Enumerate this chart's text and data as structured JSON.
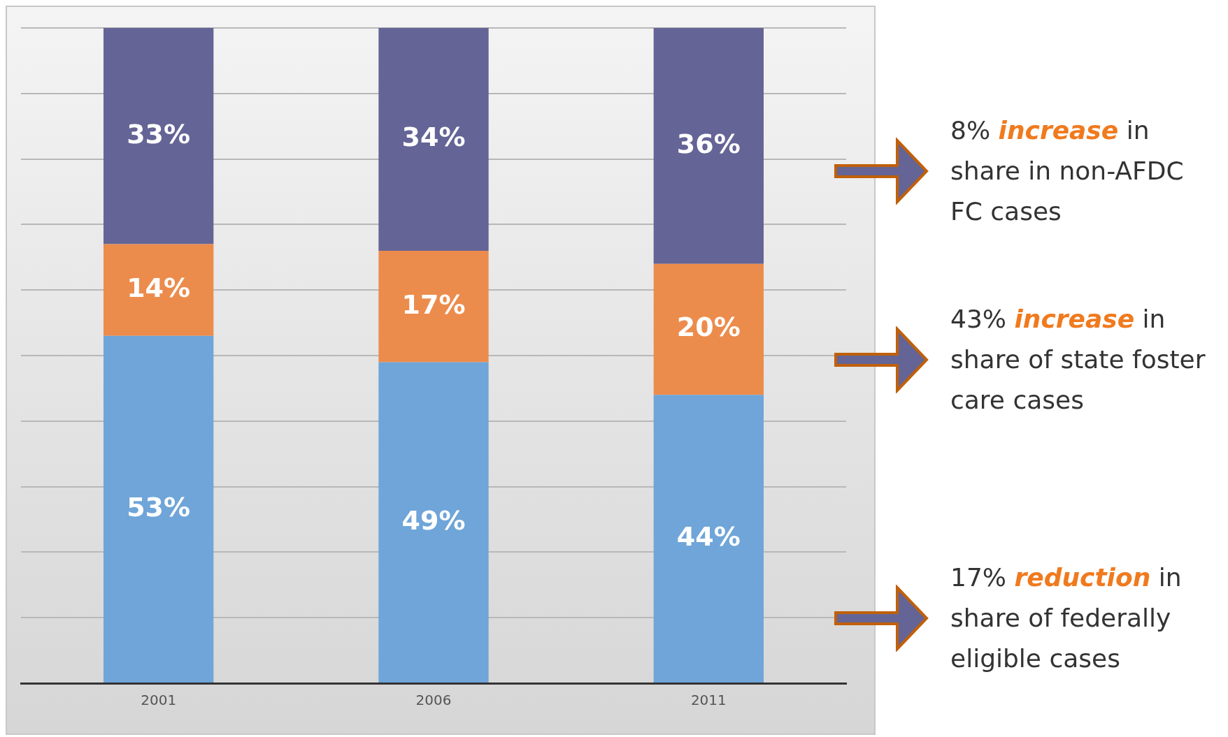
{
  "chart_data": {
    "type": "bar",
    "stacked": true,
    "categories": [
      "2001",
      "2006",
      "2011"
    ],
    "series": [
      {
        "color": "#6fa5d8",
        "values": [
          53,
          49,
          44
        ],
        "value_labels": [
          "53%",
          "49%",
          "44%"
        ]
      },
      {
        "color": "#ec8c4c",
        "values": [
          14,
          17,
          20
        ],
        "value_labels": [
          "14%",
          "17%",
          "20%"
        ]
      },
      {
        "color": "#646496",
        "values": [
          33,
          34,
          36
        ],
        "value_labels": [
          "33%",
          "34%",
          "36%"
        ]
      }
    ],
    "grid": "y",
    "tick_labels": "x",
    "legend": false,
    "annotations": [
      "8% increase in share in non-AFDC FC cases",
      "43% increase in share of state foster care cases",
      "17% reduction in share of federally eligible cases"
    ]
  }
}
